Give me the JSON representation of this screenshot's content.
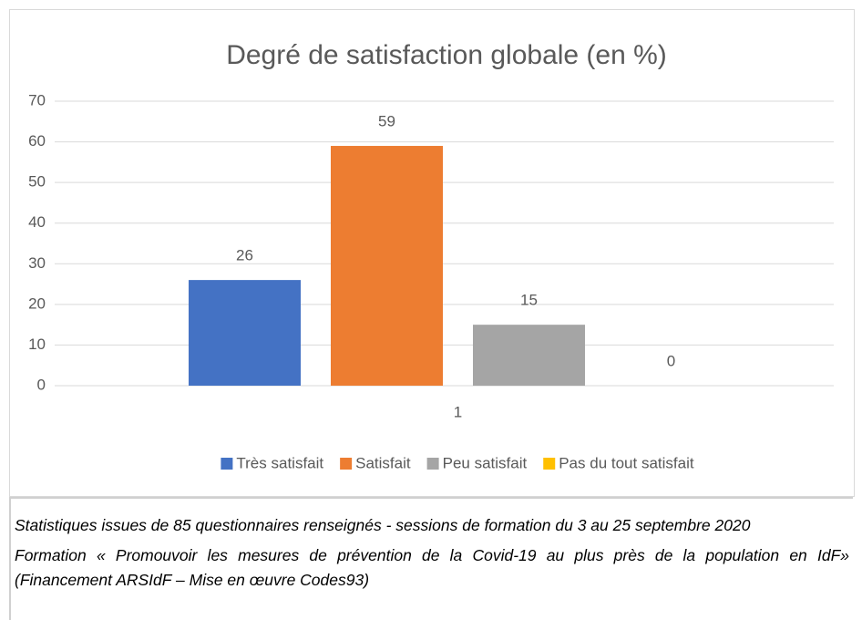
{
  "chart_data": {
    "type": "bar",
    "title": "Degré de satisfaction globale (en %)",
    "categories": [
      "1"
    ],
    "series": [
      {
        "name": "Très satisfait",
        "color": "#4472c4",
        "values": [
          26
        ]
      },
      {
        "name": "Satisfait",
        "color": "#ed7d31",
        "values": [
          59
        ]
      },
      {
        "name": "Peu satisfait",
        "color": "#a5a5a5",
        "values": [
          15
        ]
      },
      {
        "name": "Pas du tout satisfait",
        "color": "#ffc000",
        "values": [
          0
        ]
      }
    ],
    "ylim": [
      0,
      70
    ],
    "yticks": [
      0,
      10,
      20,
      30,
      40,
      50,
      60,
      70
    ],
    "grid": true,
    "legend": "bottom"
  },
  "caption": [
    "Statistiques issues de 85 questionnaires renseignés - sessions de formation du 3 au 25 septembre 2020",
    "Formation « Promouvoir les mesures de prévention de la Covid-19 au plus près de la population en IdF» (Financement ARSIdF – Mise en œuvre Codes93)"
  ]
}
